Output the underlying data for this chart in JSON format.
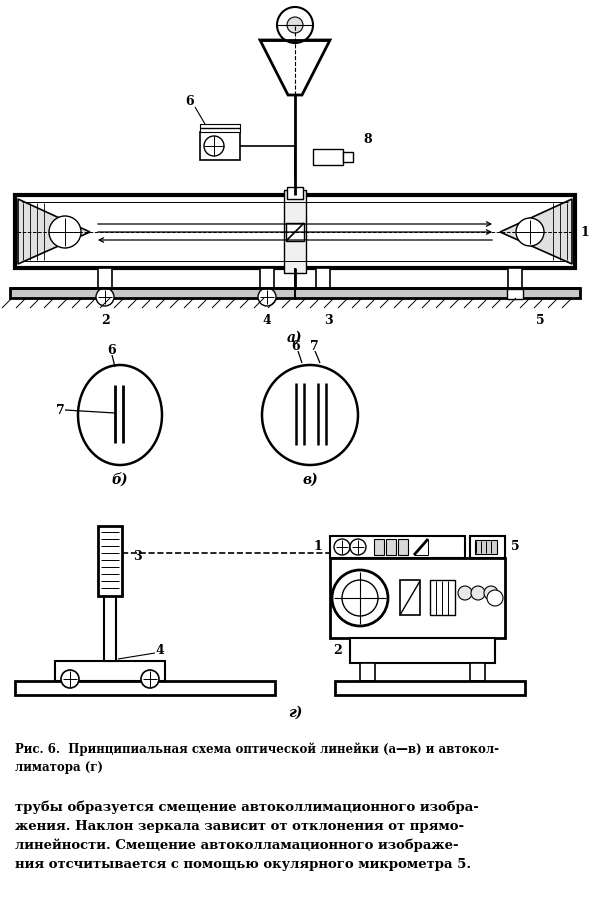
{
  "bg_color": "#ffffff",
  "line_color": "#000000",
  "caption_fig": "Рис. 6.  Принципиальная схема оптической линейки (а—в) и автокол-\nлиматора (г)",
  "body_text": "трубы образуется смещение автоколлимационного изобра-\nжения. Наклон зеркала зависит от отклонения от прямо-\nлинейности. Смещение автоколламационного изображе-\nния отсчитывается с помощью окулярного микрометра 5.",
  "label_a": "а)",
  "label_b": "б)",
  "label_v": "в)",
  "label_g": "г)"
}
